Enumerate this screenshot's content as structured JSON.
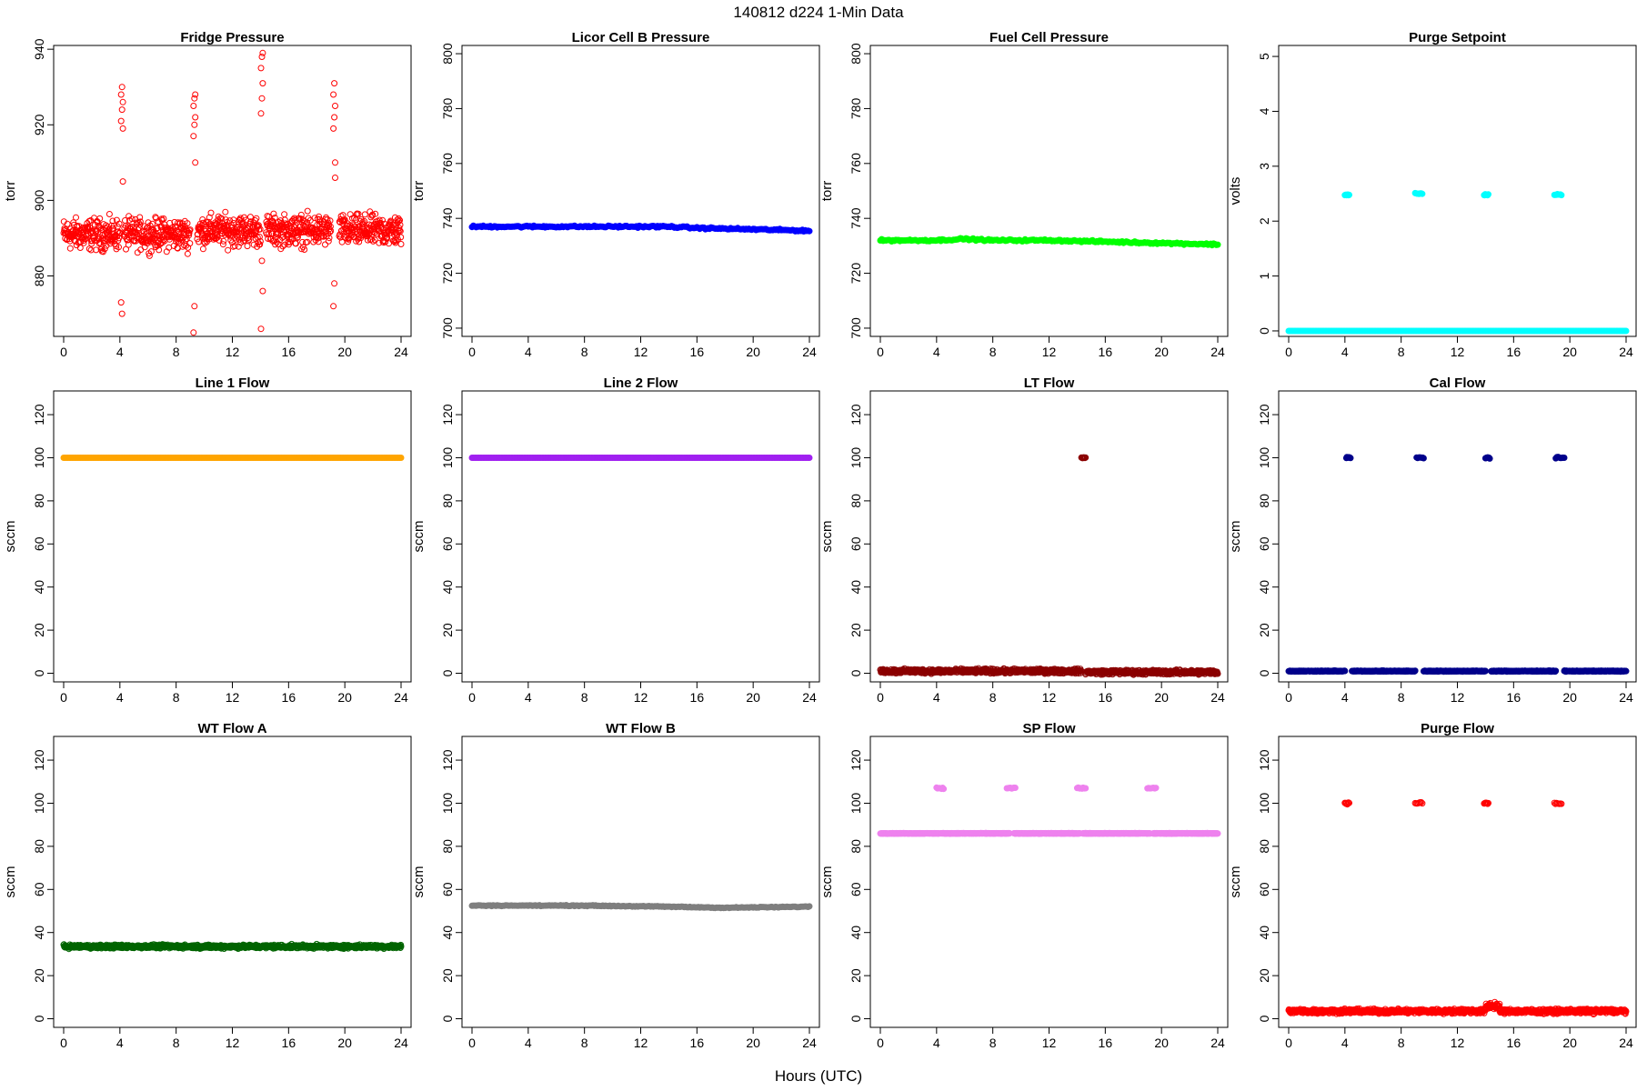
{
  "figure": {
    "title": "140812   d224   1-Min Data",
    "xlabel": "Hours (UTC)"
  },
  "chart_data": [
    {
      "type": "scatter",
      "title": "Fridge Pressure",
      "ylabel": "torr",
      "color": "#ff0000",
      "filled": false,
      "xlim": [
        0,
        24
      ],
      "xticks": [
        0,
        4,
        8,
        12,
        16,
        20,
        24
      ],
      "ylim": [
        864,
        941
      ],
      "yticks": [
        880,
        900,
        920,
        940
      ],
      "segments": [
        {
          "x": [
            0,
            4.0
          ],
          "center": 891,
          "spread": 6
        },
        {
          "x": [
            4.3,
            9.0
          ],
          "center": 891,
          "spread": 6
        },
        {
          "x": [
            9.5,
            14.0
          ],
          "center": 892,
          "spread": 6
        },
        {
          "x": [
            14.4,
            19.0
          ],
          "center": 892,
          "spread": 6
        },
        {
          "x": [
            19.6,
            24
          ],
          "center": 892,
          "spread": 6
        }
      ],
      "spikes": [
        {
          "x": 4.15,
          "values": [
            921,
            924,
            926,
            928,
            930,
            905,
            873,
            870,
            919
          ]
        },
        {
          "x": 9.3,
          "values": [
            917,
            920,
            922,
            925,
            927,
            928,
            865,
            872,
            910
          ]
        },
        {
          "x": 14.1,
          "values": [
            923,
            927,
            931,
            935,
            938,
            939,
            866,
            884,
            876
          ]
        },
        {
          "x": 19.25,
          "values": [
            919,
            922,
            925,
            928,
            931,
            906,
            872,
            878,
            910
          ]
        }
      ]
    },
    {
      "type": "scatter",
      "title": "Licor Cell B Pressure",
      "ylabel": "torr",
      "color": "#0000ff",
      "filled": true,
      "xlim": [
        0,
        24
      ],
      "xticks": [
        0,
        4,
        8,
        12,
        16,
        20,
        24
      ],
      "ylim": [
        697,
        803
      ],
      "yticks": [
        700,
        720,
        740,
        760,
        780,
        800
      ],
      "line": {
        "x": [
          0,
          4,
          8,
          12,
          14,
          16,
          20,
          24
        ],
        "y": [
          737,
          737,
          737,
          737,
          737,
          736.5,
          736,
          735.5
        ],
        "noise": 0.5
      }
    },
    {
      "type": "scatter",
      "title": "Fuel Cell Pressure",
      "ylabel": "torr",
      "color": "#00ff00",
      "filled": true,
      "xlim": [
        0,
        24
      ],
      "xticks": [
        0,
        4,
        8,
        12,
        16,
        20,
        24
      ],
      "ylim": [
        697,
        803
      ],
      "yticks": [
        700,
        720,
        740,
        760,
        780,
        800
      ],
      "line": {
        "x": [
          0,
          4,
          6,
          8,
          12,
          16,
          20,
          24
        ],
        "y": [
          732,
          732,
          732.5,
          732,
          732,
          731.5,
          731,
          730.5
        ],
        "noise": 0.5
      }
    },
    {
      "type": "scatter",
      "title": "Purge Setpoint",
      "ylabel": "volts",
      "color": "#00ffff",
      "filled": true,
      "xlim": [
        0,
        24
      ],
      "xticks": [
        0,
        4,
        8,
        12,
        16,
        20,
        24
      ],
      "ylim": [
        -0.1,
        5.2
      ],
      "yticks": [
        0,
        1,
        2,
        3,
        4,
        5
      ],
      "line": {
        "x": [
          0,
          24
        ],
        "y": [
          0,
          0
        ],
        "noise": 0
      },
      "clusters": [
        {
          "x": [
            4.0,
            4.3
          ],
          "y": 2.48
        },
        {
          "x": [
            9.0,
            9.5
          ],
          "y": 2.5
        },
        {
          "x": [
            13.9,
            14.2
          ],
          "y": 2.48
        },
        {
          "x": [
            18.9,
            19.4
          ],
          "y": 2.48
        }
      ]
    },
    {
      "type": "scatter",
      "title": "Line 1 Flow",
      "ylabel": "sccm",
      "color": "#ffa500",
      "filled": true,
      "xlim": [
        0,
        24
      ],
      "xticks": [
        0,
        4,
        8,
        12,
        16,
        20,
        24
      ],
      "ylim": [
        -4,
        131
      ],
      "yticks": [
        0,
        20,
        40,
        60,
        80,
        100,
        120
      ],
      "line": {
        "x": [
          0,
          24
        ],
        "y": [
          100,
          100
        ],
        "noise": 0
      }
    },
    {
      "type": "scatter",
      "title": "Line 2 Flow",
      "ylabel": "sccm",
      "color": "#a020f0",
      "filled": true,
      "xlim": [
        0,
        24
      ],
      "xticks": [
        0,
        4,
        8,
        12,
        16,
        20,
        24
      ],
      "ylim": [
        -4,
        131
      ],
      "yticks": [
        0,
        20,
        40,
        60,
        80,
        100,
        120
      ],
      "line": {
        "x": [
          0,
          24
        ],
        "y": [
          100,
          100
        ],
        "noise": 0
      }
    },
    {
      "type": "scatter",
      "title": "LT Flow",
      "ylabel": "sccm",
      "color": "#8b0000",
      "filled": false,
      "xlim": [
        0,
        24
      ],
      "xticks": [
        0,
        4,
        8,
        12,
        16,
        20,
        24
      ],
      "ylim": [
        -4,
        131
      ],
      "yticks": [
        0,
        20,
        40,
        60,
        80,
        100,
        120
      ],
      "segments": [
        {
          "x": [
            0,
            14.3
          ],
          "center": 1,
          "spread": 1.5
        },
        {
          "x": [
            14.6,
            24
          ],
          "center": 0.5,
          "spread": 1.5
        }
      ],
      "clusters": [
        {
          "x": [
            14.3,
            14.6
          ],
          "y": 100
        }
      ]
    },
    {
      "type": "scatter",
      "title": "Cal Flow",
      "ylabel": "sccm",
      "color": "#00008b",
      "filled": true,
      "xlim": [
        0,
        24
      ],
      "xticks": [
        0,
        4,
        8,
        12,
        16,
        20,
        24
      ],
      "ylim": [
        -4,
        131
      ],
      "yticks": [
        0,
        20,
        40,
        60,
        80,
        100,
        120
      ],
      "segments": [
        {
          "x": [
            0,
            4.0
          ],
          "center": 1,
          "spread": 0.3
        },
        {
          "x": [
            4.5,
            9.0
          ],
          "center": 1,
          "spread": 0.3
        },
        {
          "x": [
            9.6,
            14.0
          ],
          "center": 1,
          "spread": 0.3
        },
        {
          "x": [
            14.4,
            19.0
          ],
          "center": 1,
          "spread": 0.3
        },
        {
          "x": [
            19.6,
            24
          ],
          "center": 1,
          "spread": 0.3
        }
      ],
      "clusters": [
        {
          "x": [
            4.1,
            4.4
          ],
          "y": 100
        },
        {
          "x": [
            9.1,
            9.6
          ],
          "y": 100
        },
        {
          "x": [
            14.0,
            14.3
          ],
          "y": 100
        },
        {
          "x": [
            19.0,
            19.6
          ],
          "y": 100
        }
      ]
    },
    {
      "type": "scatter",
      "title": "WT Flow A",
      "ylabel": "sccm",
      "color": "#006400",
      "filled": false,
      "xlim": [
        0,
        24
      ],
      "xticks": [
        0,
        4,
        8,
        12,
        16,
        20,
        24
      ],
      "ylim": [
        -4,
        131
      ],
      "yticks": [
        0,
        20,
        40,
        60,
        80,
        100,
        120
      ],
      "segments": [
        {
          "x": [
            0,
            24
          ],
          "center": 33.5,
          "spread": 1.2
        }
      ]
    },
    {
      "type": "scatter",
      "title": "WT Flow B",
      "ylabel": "sccm",
      "color": "#7f7f7f",
      "filled": true,
      "xlim": [
        0,
        24
      ],
      "xticks": [
        0,
        4,
        8,
        12,
        16,
        20,
        24
      ],
      "ylim": [
        -4,
        131
      ],
      "yticks": [
        0,
        20,
        40,
        60,
        80,
        100,
        120
      ],
      "line": {
        "x": [
          0,
          8,
          14,
          18,
          24
        ],
        "y": [
          52.5,
          52.5,
          52,
          51.5,
          52
        ],
        "noise": 0.3
      }
    },
    {
      "type": "scatter",
      "title": "SP Flow",
      "ylabel": "sccm",
      "color": "#ee82ee",
      "filled": true,
      "xlim": [
        0,
        24
      ],
      "xticks": [
        0,
        4,
        8,
        12,
        16,
        20,
        24
      ],
      "ylim": [
        -4,
        131
      ],
      "yticks": [
        0,
        20,
        40,
        60,
        80,
        100,
        120
      ],
      "segments": [
        {
          "x": [
            0,
            4.2
          ],
          "center": 86,
          "spread": 0.2
        },
        {
          "x": [
            4.3,
            9.2
          ],
          "center": 86,
          "spread": 0.2
        },
        {
          "x": [
            9.5,
            14.2
          ],
          "center": 86,
          "spread": 0.2
        },
        {
          "x": [
            14.4,
            19.2
          ],
          "center": 86,
          "spread": 0.2
        },
        {
          "x": [
            19.4,
            24
          ],
          "center": 86,
          "spread": 0.2
        }
      ],
      "clusters": [
        {
          "x": [
            4.0,
            4.5
          ],
          "y": 107
        },
        {
          "x": [
            9.0,
            9.6
          ],
          "y": 107
        },
        {
          "x": [
            14.0,
            14.6
          ],
          "y": 107
        },
        {
          "x": [
            19.0,
            19.6
          ],
          "y": 107
        }
      ]
    },
    {
      "type": "scatter",
      "title": "Purge Flow",
      "ylabel": "sccm",
      "color": "#ff0000",
      "filled": false,
      "xlim": [
        0,
        24
      ],
      "xticks": [
        0,
        4,
        8,
        12,
        16,
        20,
        24
      ],
      "ylim": [
        -4,
        131
      ],
      "yticks": [
        0,
        20,
        40,
        60,
        80,
        100,
        120
      ],
      "segments": [
        {
          "x": [
            0,
            14.0
          ],
          "center": 3.5,
          "spread": 1.5
        },
        {
          "x": [
            14.0,
            15.0
          ],
          "center": 6,
          "spread": 2
        },
        {
          "x": [
            15.0,
            24
          ],
          "center": 3.5,
          "spread": 1.5
        }
      ],
      "clusters": [
        {
          "x": [
            4.0,
            4.3
          ],
          "y": 100
        },
        {
          "x": [
            9.0,
            9.5
          ],
          "y": 100
        },
        {
          "x": [
            13.9,
            14.2
          ],
          "y": 100
        },
        {
          "x": [
            18.9,
            19.4
          ],
          "y": 100
        }
      ]
    }
  ]
}
